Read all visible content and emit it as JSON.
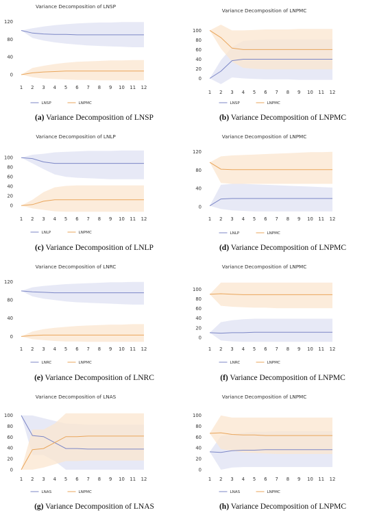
{
  "chart_data": [
    {
      "type": "line",
      "panel_id": "a",
      "title": "Variance Decomposition of LNSP",
      "caption_letter": "(a)",
      "caption_text": "Variance Decomposition of LNSP",
      "x": [
        1,
        2,
        3,
        4,
        5,
        6,
        7,
        8,
        9,
        10,
        11,
        12
      ],
      "ylim": [
        -14,
        124
      ],
      "yticks": [
        0,
        40,
        80,
        120
      ],
      "xlabel": "",
      "ylabel": "",
      "grid": false,
      "legend_placement": "bottom-center",
      "series": [
        {
          "name": "LNSP",
          "color": "#7b86c6",
          "band_color": "#dfe1f3",
          "values": [
            100,
            94,
            92,
            91,
            91,
            90,
            90,
            90,
            90,
            90,
            90,
            90
          ],
          "upper": [
            100,
            105,
            109,
            112,
            114,
            116,
            117,
            118,
            118,
            119,
            119,
            119
          ],
          "lower": [
            100,
            83,
            77,
            73,
            70,
            68,
            66,
            65,
            64,
            63,
            62,
            62
          ]
        },
        {
          "name": "LNPMC",
          "color": "#e9a55a",
          "band_color": "#fbe6cf",
          "values": [
            0,
            4,
            6,
            7,
            8,
            8,
            8,
            8,
            8,
            8,
            8,
            8
          ],
          "upper": [
            0,
            15,
            20,
            24,
            27,
            29,
            30,
            31,
            32,
            32,
            33,
            33
          ],
          "lower": [
            0,
            -6,
            -9,
            -10,
            -11,
            -12,
            -12,
            -13,
            -13,
            -13,
            -13,
            -13
          ]
        }
      ]
    },
    {
      "type": "line",
      "panel_id": "b",
      "title": "Variance Decomposition of LNPMC",
      "caption_letter": "(b)",
      "caption_text": "Variance Decomposition of LNPMC",
      "x": [
        1,
        2,
        3,
        4,
        5,
        6,
        7,
        8,
        9,
        10,
        11,
        12
      ],
      "ylim": [
        -15,
        112
      ],
      "yticks": [
        0,
        20,
        40,
        60,
        80,
        100
      ],
      "xlabel": "",
      "ylabel": "",
      "grid": false,
      "legend_placement": "bottom-center",
      "series": [
        {
          "name": "LNSP",
          "color": "#7b86c6",
          "band_color": "#dfe1f3",
          "values": [
            0,
            15,
            37,
            40,
            40,
            40,
            40,
            40,
            40,
            40,
            40,
            40
          ],
          "upper": [
            0,
            38,
            65,
            78,
            80,
            81,
            81,
            81,
            81,
            81,
            81,
            81
          ],
          "lower": [
            0,
            -12,
            2,
            0,
            -1,
            -2,
            -2,
            -2,
            -3,
            -3,
            -3,
            -3
          ]
        },
        {
          "name": "LNPMC",
          "color": "#e9a55a",
          "band_color": "#fbe6cf",
          "values": [
            100,
            85,
            63,
            60,
            60,
            60,
            60,
            60,
            60,
            60,
            60,
            60
          ],
          "upper": [
            100,
            112,
            100,
            100,
            101,
            102,
            102,
            102,
            103,
            103,
            103,
            103
          ],
          "lower": [
            100,
            62,
            35,
            22,
            20,
            19,
            19,
            19,
            19,
            19,
            19,
            19
          ]
        }
      ]
    },
    {
      "type": "line",
      "panel_id": "c",
      "title": "Variance Decomposition of LNLP",
      "caption_letter": "(c)",
      "caption_text": "Variance Decomposition of LNLP",
      "x": [
        1,
        2,
        3,
        4,
        5,
        6,
        7,
        8,
        9,
        10,
        11,
        12
      ],
      "ylim": [
        -14,
        116
      ],
      "yticks": [
        0,
        20,
        40,
        60,
        80,
        100
      ],
      "xlabel": "",
      "ylabel": "",
      "grid": false,
      "legend_placement": "bottom-center",
      "series": [
        {
          "name": "LNLP",
          "color": "#7b86c6",
          "band_color": "#dfe1f3",
          "values": [
            100,
            98,
            91,
            88,
            88,
            88,
            88,
            88,
            88,
            88,
            88,
            88
          ],
          "upper": [
            100,
            106,
            108,
            111,
            112,
            113,
            114,
            114,
            114,
            115,
            115,
            115
          ],
          "lower": [
            100,
            88,
            76,
            65,
            60,
            58,
            57,
            56,
            55,
            55,
            55,
            55
          ]
        },
        {
          "name": "LNPMC",
          "color": "#e9a55a",
          "band_color": "#fbe6cf",
          "values": [
            0,
            2,
            9,
            12,
            12,
            12,
            12,
            12,
            12,
            12,
            12,
            12
          ],
          "upper": [
            0,
            12,
            28,
            38,
            41,
            42,
            42,
            42,
            42,
            42,
            42,
            42
          ],
          "lower": [
            0,
            -6,
            -9,
            -12,
            -13,
            -13,
            -13,
            -13,
            -13,
            -13,
            -13,
            -13
          ]
        }
      ]
    },
    {
      "type": "line",
      "panel_id": "d",
      "title": "Variance Decomposition of LNPMC",
      "caption_letter": "(d)",
      "caption_text": "Variance Decomposition of LNPMC",
      "x": [
        1,
        2,
        3,
        4,
        5,
        6,
        7,
        8,
        9,
        10,
        11,
        12
      ],
      "ylim": [
        -12,
        124
      ],
      "yticks": [
        0,
        40,
        80,
        120
      ],
      "xlabel": "",
      "ylabel": "",
      "grid": false,
      "legend_placement": "bottom-center",
      "series": [
        {
          "name": "LNLP",
          "color": "#7b86c6",
          "band_color": "#dfe1f3",
          "values": [
            2,
            17,
            18,
            18,
            18,
            18,
            18,
            18,
            18,
            18,
            18,
            18
          ],
          "upper": [
            2,
            48,
            50,
            50,
            49,
            48,
            47,
            46,
            45,
            44,
            43,
            42
          ],
          "lower": [
            2,
            -5,
            -8,
            -9,
            -10,
            -10,
            -10,
            -10,
            -10,
            -10,
            -10,
            -10
          ]
        },
        {
          "name": "LNPMC",
          "color": "#e9a55a",
          "band_color": "#fbe6cf",
          "values": [
            97,
            82,
            81,
            81,
            81,
            81,
            81,
            81,
            81,
            81,
            81,
            81
          ],
          "upper": [
            97,
            110,
            112,
            113,
            114,
            115,
            116,
            117,
            118,
            119,
            119,
            120
          ],
          "lower": [
            97,
            52,
            50,
            50,
            50,
            50,
            50,
            50,
            50,
            50,
            50,
            50
          ]
        }
      ]
    },
    {
      "type": "line",
      "panel_id": "e",
      "title": "Variance Decomposition of LNRC",
      "caption_letter": "(e)",
      "caption_text": "Variance Decomposition of LNRC",
      "x": [
        1,
        2,
        3,
        4,
        5,
        6,
        7,
        8,
        9,
        10,
        11,
        12
      ],
      "ylim": [
        -13,
        124
      ],
      "yticks": [
        0,
        40,
        80,
        120
      ],
      "xlabel": "",
      "ylabel": "",
      "grid": false,
      "legend_placement": "bottom-center",
      "series": [
        {
          "name": "LNRC",
          "color": "#7b86c6",
          "band_color": "#dfe1f3",
          "values": [
            100,
            98,
            97,
            96,
            96,
            96,
            96,
            96,
            96,
            96,
            96,
            96
          ],
          "upper": [
            100,
            108,
            111,
            113,
            115,
            116,
            117,
            118,
            119,
            119,
            120,
            120
          ],
          "lower": [
            100,
            88,
            83,
            80,
            77,
            75,
            74,
            73,
            72,
            71,
            70,
            70
          ]
        },
        {
          "name": "LNPMC",
          "color": "#e9a55a",
          "band_color": "#fbe6cf",
          "values": [
            0,
            2,
            3,
            3,
            3,
            3,
            3,
            3,
            3,
            3,
            3,
            3
          ],
          "upper": [
            0,
            11,
            16,
            19,
            21,
            23,
            24,
            25,
            26,
            26,
            27,
            27
          ],
          "lower": [
            0,
            -6,
            -8,
            -10,
            -11,
            -11,
            -12,
            -12,
            -12,
            -12,
            -12,
            -12
          ]
        }
      ]
    },
    {
      "type": "line",
      "panel_id": "f",
      "title": "Variance Decomposition of LNPMC",
      "caption_letter": "(f)",
      "caption_text": "Variance Decomposition of LNPMC",
      "x": [
        1,
        2,
        3,
        4,
        5,
        6,
        7,
        8,
        9,
        10,
        11,
        12
      ],
      "ylim": [
        -10,
        118
      ],
      "yticks": [
        0,
        20,
        40,
        60,
        80,
        100
      ],
      "xlabel": "",
      "ylabel": "",
      "grid": false,
      "legend_placement": "bottom-center",
      "series": [
        {
          "name": "LNRC",
          "color": "#7b86c6",
          "band_color": "#dfe1f3",
          "values": [
            10,
            9,
            10,
            10,
            11,
            11,
            11,
            11,
            11,
            11,
            11,
            11
          ],
          "upper": [
            10,
            32,
            36,
            38,
            39,
            39,
            39,
            39,
            39,
            39,
            39,
            39
          ],
          "lower": [
            10,
            -6,
            -8,
            -9,
            -9,
            -9,
            -9,
            -9,
            -9,
            -9,
            -9,
            -9
          ]
        },
        {
          "name": "LNPMC",
          "color": "#e9a55a",
          "band_color": "#fbe6cf",
          "values": [
            90,
            91,
            90,
            89,
            89,
            89,
            89,
            89,
            89,
            89,
            89,
            89
          ],
          "upper": [
            90,
            114,
            114,
            114,
            114,
            114,
            114,
            114,
            114,
            114,
            114,
            114
          ],
          "lower": [
            90,
            66,
            64,
            63,
            62,
            62,
            61,
            61,
            61,
            61,
            61,
            61
          ]
        }
      ]
    },
    {
      "type": "line",
      "panel_id": "g",
      "title": "Variance Decomposition of LNAS",
      "caption_letter": "(g)",
      "caption_text": "Variance Decomposition of LNAS",
      "x": [
        1,
        2,
        3,
        4,
        5,
        6,
        7,
        8,
        9,
        10,
        11,
        12
      ],
      "ylim": [
        -5,
        106
      ],
      "yticks": [
        0,
        20,
        40,
        60,
        80,
        100
      ],
      "xlabel": "",
      "ylabel": "",
      "grid": false,
      "legend_placement": "bottom-center",
      "series": [
        {
          "name": "LNAS",
          "color": "#7b86c6",
          "band_color": "#dfe1f3",
          "values": [
            100,
            63,
            61,
            50,
            39,
            39,
            38,
            38,
            38,
            38,
            38,
            38
          ],
          "upper": [
            100,
            100,
            95,
            90,
            85,
            84,
            83,
            83,
            83,
            83,
            83,
            83
          ],
          "lower": [
            100,
            27,
            27,
            16,
            0,
            0,
            0,
            0,
            0,
            0,
            0,
            0
          ]
        },
        {
          "name": "LNPMC",
          "color": "#e9a55a",
          "band_color": "#fbe6cf",
          "values": [
            0,
            37,
            39,
            50,
            61,
            61,
            62,
            62,
            62,
            62,
            62,
            62
          ],
          "upper": [
            0,
            74,
            74,
            85,
            104,
            104,
            104,
            104,
            104,
            104,
            104,
            104
          ],
          "lower": [
            0,
            0,
            4,
            10,
            16,
            16,
            17,
            17,
            17,
            17,
            17,
            17
          ]
        }
      ]
    },
    {
      "type": "line",
      "panel_id": "h",
      "title": "Variance Decomposition of LNPMC",
      "caption_letter": "(h)",
      "caption_text": "Variance Decomposition of LNPMC",
      "x": [
        1,
        2,
        3,
        4,
        5,
        6,
        7,
        8,
        9,
        10,
        11,
        12
      ],
      "ylim": [
        -5,
        106
      ],
      "yticks": [
        0,
        20,
        40,
        60,
        80,
        100
      ],
      "xlabel": "",
      "ylabel": "",
      "grid": false,
      "legend_placement": "bottom-center",
      "series": [
        {
          "name": "LNAS",
          "color": "#7b86c6",
          "band_color": "#dfe1f3",
          "values": [
            33,
            32,
            35,
            36,
            36,
            37,
            37,
            37,
            37,
            37,
            37,
            37
          ],
          "upper": [
            33,
            62,
            65,
            68,
            70,
            70,
            71,
            71,
            71,
            71,
            71,
            71
          ],
          "lower": [
            33,
            0,
            4,
            5,
            5,
            5,
            5,
            5,
            5,
            5,
            5,
            5
          ]
        },
        {
          "name": "LNPMC",
          "color": "#e9a55a",
          "band_color": "#fbe6cf",
          "values": [
            67,
            68,
            65,
            64,
            64,
            63,
            63,
            63,
            63,
            63,
            63,
            63
          ],
          "upper": [
            67,
            100,
            96,
            96,
            96,
            96,
            96,
            96,
            96,
            96,
            96,
            96
          ],
          "lower": [
            67,
            38,
            35,
            32,
            31,
            30,
            29,
            29,
            29,
            29,
            29,
            29
          ]
        }
      ]
    }
  ]
}
